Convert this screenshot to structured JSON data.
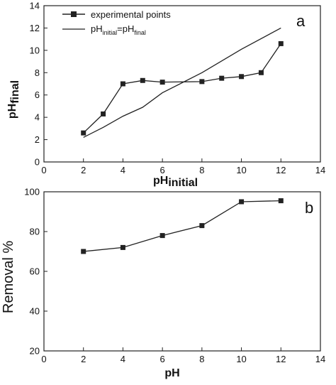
{
  "chart_data": [
    {
      "panel": "a",
      "type": "line",
      "xlim": [
        0,
        14
      ],
      "ylim": [
        0,
        14
      ],
      "x_ticks": [
        "0",
        "2",
        "4",
        "6",
        "8",
        "10",
        "12",
        "14"
      ],
      "y_ticks": [
        "0",
        "2",
        "4",
        "6",
        "8",
        "10",
        "12",
        "14"
      ],
      "x_tick_values": [
        0,
        2,
        4,
        6,
        8,
        10,
        12,
        14
      ],
      "y_tick_values": [
        0,
        2,
        4,
        6,
        8,
        10,
        12,
        14
      ],
      "xlabel": {
        "base": "pH",
        "sub": "initial"
      },
      "ylabel": {
        "base": "pH",
        "sub": "final"
      },
      "legend_position": "top-left",
      "grid": false,
      "series": [
        {
          "name": "experimental points",
          "marker": "square",
          "color": "#222222",
          "x": [
            2,
            3,
            4,
            5,
            6,
            8,
            9,
            10,
            11,
            12
          ],
          "y": [
            2.6,
            4.3,
            7.0,
            7.3,
            7.15,
            7.2,
            7.5,
            7.65,
            8.0,
            10.6
          ]
        },
        {
          "name": {
            "base1": "pH",
            "sub1": "initial",
            "mid": "=pH",
            "sub2": "final"
          },
          "marker": "none",
          "color": "#222222",
          "x": [
            2,
            3,
            4,
            5,
            6,
            8,
            10,
            12
          ],
          "y": [
            2.2,
            3.1,
            4.1,
            4.9,
            6.2,
            8.0,
            10.1,
            12.0
          ]
        }
      ]
    },
    {
      "panel": "b",
      "type": "line",
      "xlim": [
        0,
        14
      ],
      "ylim": [
        20,
        100
      ],
      "x_ticks": [
        "0",
        "2",
        "4",
        "6",
        "8",
        "10",
        "12",
        "14"
      ],
      "y_ticks": [
        "20",
        "40",
        "60",
        "80",
        "100"
      ],
      "x_tick_values": [
        0,
        2,
        4,
        6,
        8,
        10,
        12,
        14
      ],
      "y_tick_values": [
        20,
        40,
        60,
        80,
        100
      ],
      "xlabel": "pH",
      "ylabel": "Removal %",
      "grid": false,
      "series": [
        {
          "marker": "square",
          "color": "#222222",
          "x": [
            2,
            4,
            6,
            8,
            10,
            12
          ],
          "y": [
            70,
            72,
            78,
            83,
            95,
            95.5
          ]
        }
      ]
    }
  ]
}
